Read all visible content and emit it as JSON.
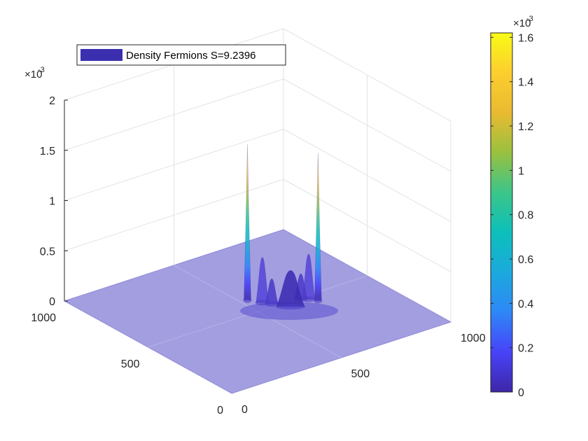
{
  "chart_data": [
    {
      "type": "surface",
      "title": "",
      "legend": {
        "label": "Density Fermions S=9.2396",
        "placement": "top-left",
        "swatch_color": "#3b2fb0"
      },
      "axes": {
        "x": {
          "label": "",
          "ticks": [
            "0",
            "500",
            "1000"
          ],
          "range": [
            0,
            1000
          ]
        },
        "y": {
          "label": "",
          "ticks": [
            "0",
            "500",
            "1000"
          ],
          "range": [
            0,
            1000
          ]
        },
        "z": {
          "label": "",
          "ticks": [
            "0",
            "0.5",
            "1",
            "1.5",
            "2"
          ],
          "range": [
            0,
            2
          ],
          "exponent_base": "×10",
          "exponent_power": "-3"
        }
      },
      "grid": true,
      "surface_floor_color": "#a39ee0",
      "peaks_1e3": [
        {
          "name": "left-spike",
          "value": 1.55
        },
        {
          "name": "right-spike",
          "value": 1.47
        },
        {
          "name": "left-side-peak",
          "value": 0.45
        },
        {
          "name": "right-side-peak",
          "value": 0.45
        },
        {
          "name": "left-inner-peak",
          "value": 0.25
        },
        {
          "name": "right-inner-peak",
          "value": 0.25
        },
        {
          "name": "central-peak",
          "value": 0.36
        }
      ]
    },
    {
      "type": "colorbar",
      "ticks": [
        "0",
        "0.2",
        "0.4",
        "0.6",
        "0.8",
        "1",
        "1.2",
        "1.4",
        "1.6"
      ],
      "tick_values": [
        0,
        0.2,
        0.4,
        0.6,
        0.8,
        1.0,
        1.2,
        1.4,
        1.6
      ],
      "range": [
        0,
        1.62
      ],
      "exponent_base": "×10",
      "exponent_power": "-3",
      "colormap": "parula",
      "stops": [
        "#3e26a8",
        "#4743f8",
        "#2e87f7",
        "#1ba9dd",
        "#0cbfbb",
        "#3cc589",
        "#99c13f",
        "#e9ba30",
        "#fcce2e",
        "#f9fb15"
      ]
    }
  ]
}
